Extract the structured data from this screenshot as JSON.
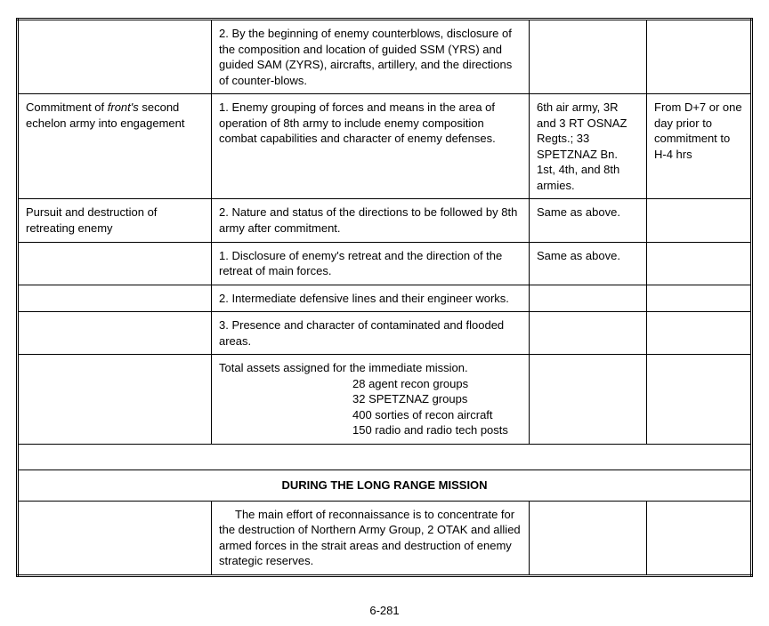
{
  "rows": {
    "r1": {
      "c2": "2.  By the beginning of enemy counterblows, disclosure of the composition and location of guided SSM  (YRS) and guided SAM (ZYRS), aircrafts, artillery, and the directions of counter-blows."
    },
    "r2": {
      "c1a": "Commitment of ",
      "c1b": "front's",
      "c1c": " second echelon army into engagement",
      "c2": "1.  Enemy grouping of forces and means in the area of operation of 8th army to include enemy composition combat capabilities and character of enemy defenses.",
      "c3": "6th air army, 3R and 3 RT OSNAZ Regts.; 33 SPETZNAZ Bn. 1st, 4th, and 8th armies.",
      "c4": "From D+7 or one day prior to commitment to H-4 hrs"
    },
    "r3": {
      "c1": "Pursuit and destruction of retreating enemy",
      "c2": "2.  Nature and status of the directions to be followed by 8th army after commitment.",
      "c3": "Same as above."
    },
    "r4": {
      "c2": "1.  Disclosure of enemy's retreat and the direction of the retreat of main forces.",
      "c3": "Same as above."
    },
    "r5": {
      "c2": "2.  Intermediate defensive lines and their engineer works."
    },
    "r6": {
      "c2": "3.  Presence and character of contaminated and flooded areas."
    },
    "r7": {
      "title": "Total assets assigned for the immediate mission.",
      "l1": "28 agent recon groups",
      "l2": "32 SPETZNAZ groups",
      "l3": "400 sorties of recon aircraft",
      "l4": "150 radio and radio tech posts"
    },
    "section": "DURING THE LONG RANGE MISSION",
    "r8": {
      "c2": "The main effort of reconnaissance is to concentrate for the destruction of Northern Army Group, 2 OTAK and allied armed forces in the strait areas and destruction of enemy strategic reserves."
    }
  },
  "page_number": "6-281"
}
